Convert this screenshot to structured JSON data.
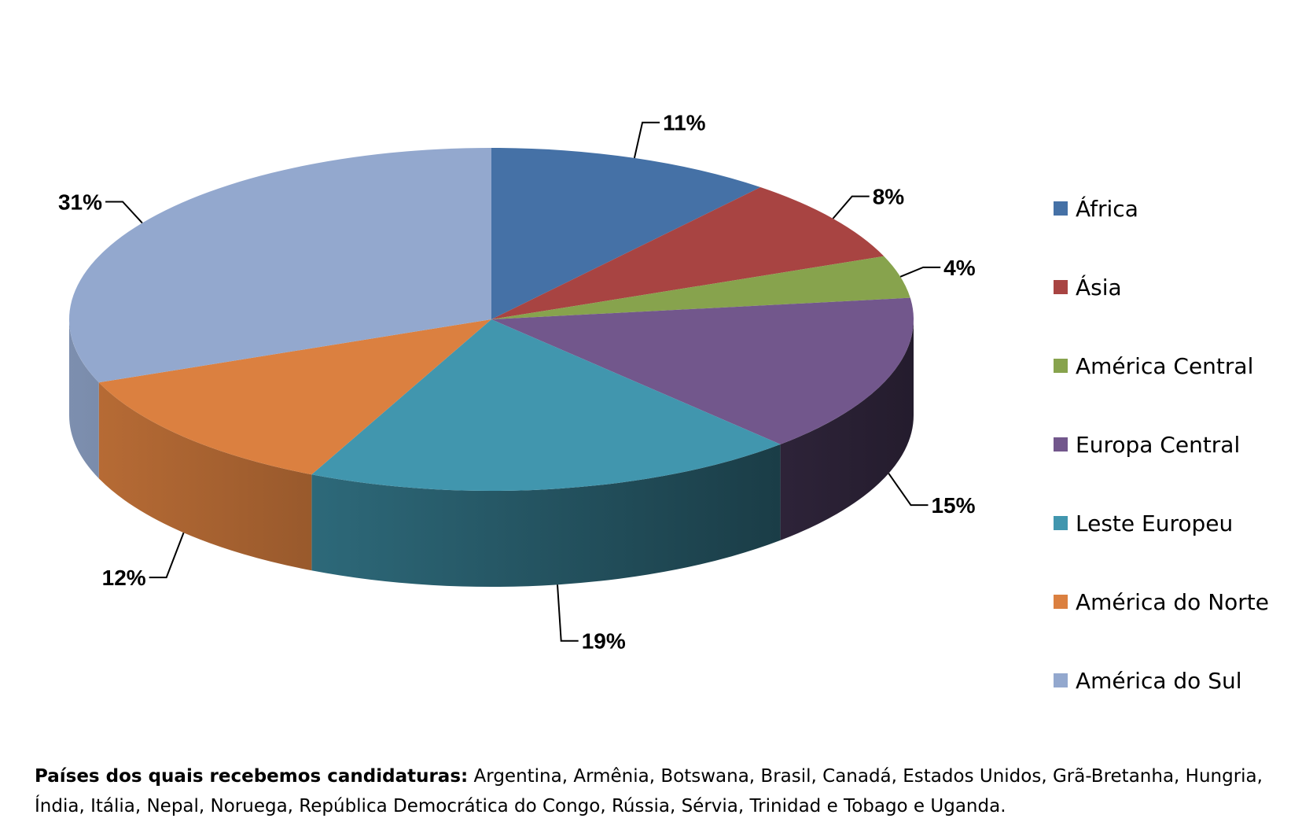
{
  "chart_data": {
    "type": "pie",
    "style": "3d",
    "legend_position": "right",
    "series": [
      {
        "name": "África",
        "value": 11,
        "label": "11%",
        "color": "#4571A6"
      },
      {
        "name": "Ásia",
        "value": 8,
        "label": "8%",
        "color": "#A84442"
      },
      {
        "name": "América Central",
        "value": 4,
        "label": "4%",
        "color": "#87A34D"
      },
      {
        "name": "Europa Central",
        "value": 15,
        "label": "15%",
        "color": "#72578C"
      },
      {
        "name": "Leste Europeu",
        "value": 19,
        "label": "19%",
        "color": "#4196AE"
      },
      {
        "name": "América do Norte",
        "value": 12,
        "label": "12%",
        "color": "#DB8040"
      },
      {
        "name": "América do Sul",
        "value": 31,
        "label": "31%",
        "color": "#93A8CE"
      }
    ]
  },
  "footnote": {
    "label": "Países dos quais recebemos candidaturas:",
    "text": " Argentina, Armênia, Botswana, Brasil, Canadá, Estados Unidos, Grã-Bretanha, Hungria, Índia, Itália, Nepal, Noruega, República Democrática do Congo, Rússia, Sérvia, Trinidad e Tobago e Uganda."
  }
}
